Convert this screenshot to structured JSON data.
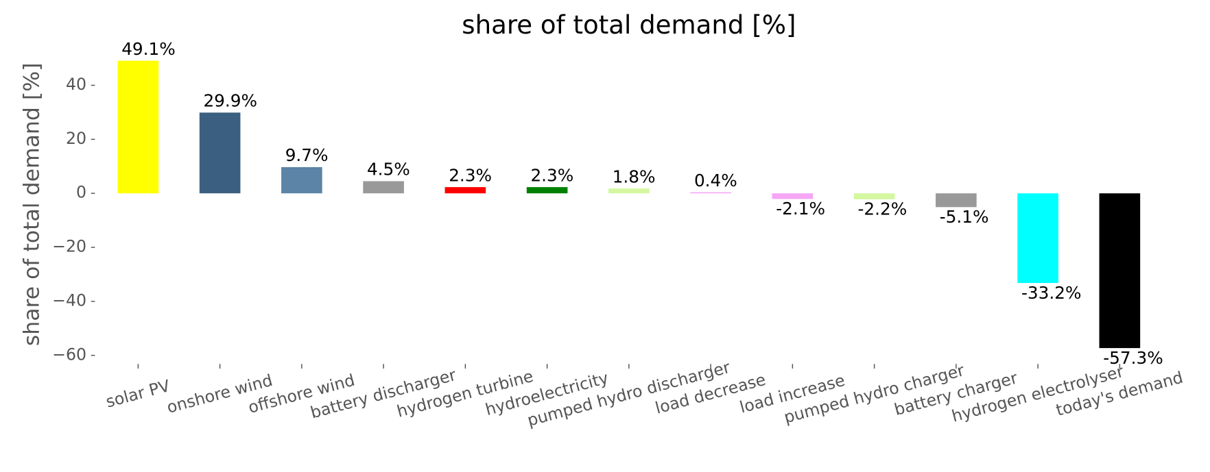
{
  "chart_data": {
    "type": "bar",
    "title": "share of total demand [%]",
    "ylabel": "share of total demand [%]",
    "categories": [
      "solar PV",
      "onshore wind",
      "offshore wind",
      "battery discharger",
      "hydrogen turbine",
      "hydroelectricity",
      "pumped hydro discharger",
      "load decrease",
      "load increase",
      "pumped hydro charger",
      "battery charger",
      "hydrogen electrolyser",
      "today's demand"
    ],
    "values": [
      49.1,
      29.9,
      9.7,
      4.5,
      2.3,
      2.3,
      1.8,
      0.4,
      -2.1,
      -2.2,
      -5.1,
      -33.2,
      -57.3
    ],
    "value_labels": [
      "49.1%",
      "29.9%",
      "9.7%",
      "4.5%",
      "2.3%",
      "2.3%",
      "1.8%",
      "0.4%",
      "-2.1%",
      "-2.2%",
      "-5.1%",
      "-33.2%",
      "-57.3%"
    ],
    "colors": [
      "#ffff00",
      "#3b5f80",
      "#5b84a6",
      "#999999",
      "#ff0000",
      "#008000",
      "#d4f7a0",
      "#f5a6f5",
      "#f5a6f5",
      "#d4f7a0",
      "#999999",
      "#00ffff",
      "#000000"
    ],
    "ylim": [
      -62.6,
      54.4
    ],
    "yticks": [
      {
        "value": -60,
        "label": "−60"
      },
      {
        "value": -40,
        "label": "−40"
      },
      {
        "value": -20,
        "label": "−20"
      },
      0,
      20,
      40
    ],
    "grid": false
  }
}
